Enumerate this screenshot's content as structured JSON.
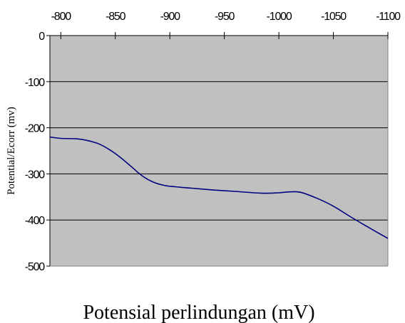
{
  "chart_data": {
    "type": "line",
    "xlabel": "Potensial perlindungan  (mV)",
    "ylabel": "Potential/Ecorr (mv)",
    "x_axis_position": "top",
    "x_reversed": true,
    "xlim": [
      -790,
      -1100
    ],
    "ylim": [
      -500,
      0
    ],
    "x_ticks": [
      -800,
      -850,
      -900,
      -950,
      -1000,
      -1050,
      -1100
    ],
    "x_tick_labels": [
      "-800",
      "-850",
      "-900",
      "-950",
      "-1000",
      "-1050",
      "-1100"
    ],
    "y_ticks": [
      0,
      -100,
      -200,
      -300,
      -400,
      -500
    ],
    "y_tick_labels": [
      "0",
      "-100",
      "-200",
      "-300",
      "-400",
      "-500"
    ],
    "grid": "horizontal major",
    "plot_background": "#c0c0c0",
    "series": [
      {
        "color": "#000080",
        "x": [
          -790,
          -800,
          -815,
          -825,
          -835,
          -845,
          -855,
          -865,
          -875,
          -885,
          -895,
          -905,
          -920,
          -940,
          -960,
          -985,
          -1000,
          -1010,
          -1020,
          -1035,
          -1050,
          -1065,
          -1080,
          -1100
        ],
        "y": [
          -220,
          -223,
          -224,
          -228,
          -235,
          -248,
          -265,
          -285,
          -305,
          -318,
          -325,
          -328,
          -331,
          -335,
          -338,
          -342,
          -341,
          -339,
          -340,
          -353,
          -370,
          -392,
          -413,
          -440
        ]
      }
    ]
  }
}
